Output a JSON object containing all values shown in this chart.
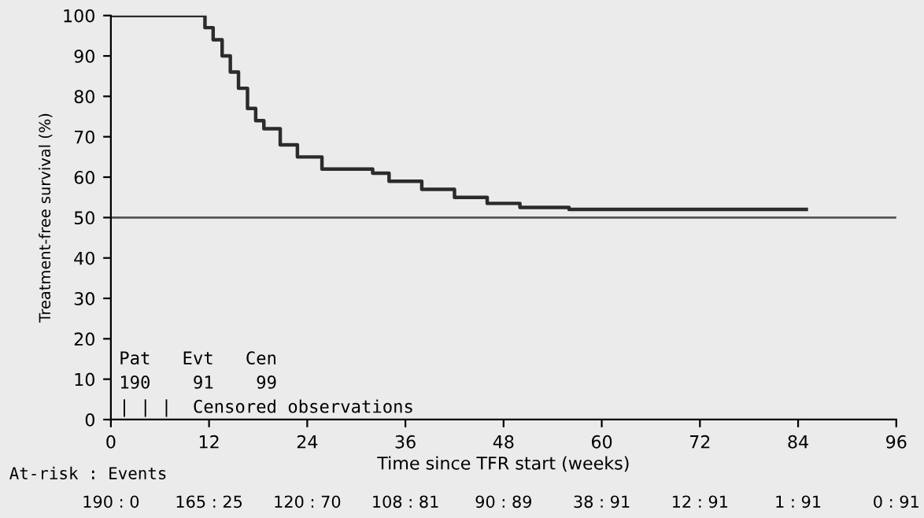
{
  "chart_data": {
    "type": "step",
    "xlabel": "Time since TFR start (weeks)",
    "ylabel": "Treatment-free survival (%)",
    "x": [
      0,
      10,
      11.5,
      12.5,
      13.6,
      14.6,
      15.6,
      16.7,
      17.7,
      18.7,
      20.7,
      22.8,
      25.8,
      32,
      34,
      38,
      42,
      46,
      50,
      56,
      60,
      85
    ],
    "series": [
      {
        "color": "#2b2b2b",
        "values": [
          100,
          100,
          97,
          94,
          90,
          86,
          82,
          77,
          74,
          72,
          68,
          65,
          62,
          61,
          59,
          57,
          55,
          53.5,
          52.5,
          52,
          52,
          52
        ]
      }
    ],
    "xlim": [
      0,
      96
    ],
    "xticks": [
      0,
      12,
      24,
      36,
      48,
      60,
      72,
      84,
      96
    ],
    "ylim": [
      0,
      100
    ],
    "yticks": [
      0,
      10,
      20,
      30,
      40,
      50,
      60,
      70,
      80,
      90,
      100
    ],
    "ref_lines": [
      {
        "axis": "y",
        "value": 50,
        "color": "#555555"
      }
    ],
    "annotations": [
      "Pat   Evt   Cen",
      "190    91    99",
      "| | |  Censored observations",
      "At-risk : Events",
      "190 : 0",
      "165 : 25",
      "120 : 70",
      "108 : 81",
      "90 : 89",
      "38 : 91",
      "12 : 91",
      "1 : 91",
      "0 : 91"
    ]
  }
}
